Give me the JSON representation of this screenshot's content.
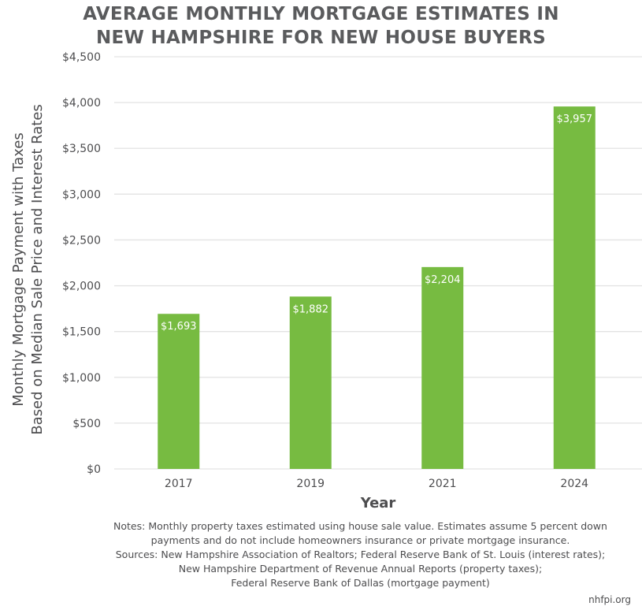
{
  "chart_data": {
    "type": "bar",
    "title_lines": [
      "AVERAGE MONTHLY MORTGAGE ESTIMATES IN",
      "NEW HAMPSHIRE FOR NEW HOUSE BUYERS"
    ],
    "categories": [
      "2017",
      "2019",
      "2021",
      "2024"
    ],
    "values": [
      1693,
      1882,
      2204,
      3957
    ],
    "data_labels": [
      "$1,693",
      "$1,882",
      "$2,204",
      "$3,957"
    ],
    "xlabel": "Year",
    "ylabel_lines": [
      "Monthly Mortgage Payment with Taxes",
      "Based on Median Sale Price and Interest Rates"
    ],
    "ylim": [
      0,
      4500
    ],
    "yticks": [
      0,
      500,
      1000,
      1500,
      2000,
      2500,
      3000,
      3500,
      4000,
      4500
    ],
    "ytick_labels": [
      "$0",
      "$500",
      "$1,000",
      "$1,500",
      "$2,000",
      "$2,500",
      "$3,000",
      "$3,500",
      "$4,000",
      "$4,500"
    ],
    "grid": true,
    "bar_color": "#77bb41"
  },
  "notes": [
    "Notes: Monthly property taxes estimated using house sale value. Estimates assume 5 percent down",
    "payments and do not include homeowners insurance or private mortgage insurance.",
    "Sources: New Hampshire Association of Realtors; Federal Reserve Bank of St. Louis (interest rates);",
    "New Hampshire Department of Revenue Annual Reports (property taxes);",
    "Federal Reserve Bank of Dallas (mortgage payment)"
  ],
  "source_site": "nhfpi.org"
}
